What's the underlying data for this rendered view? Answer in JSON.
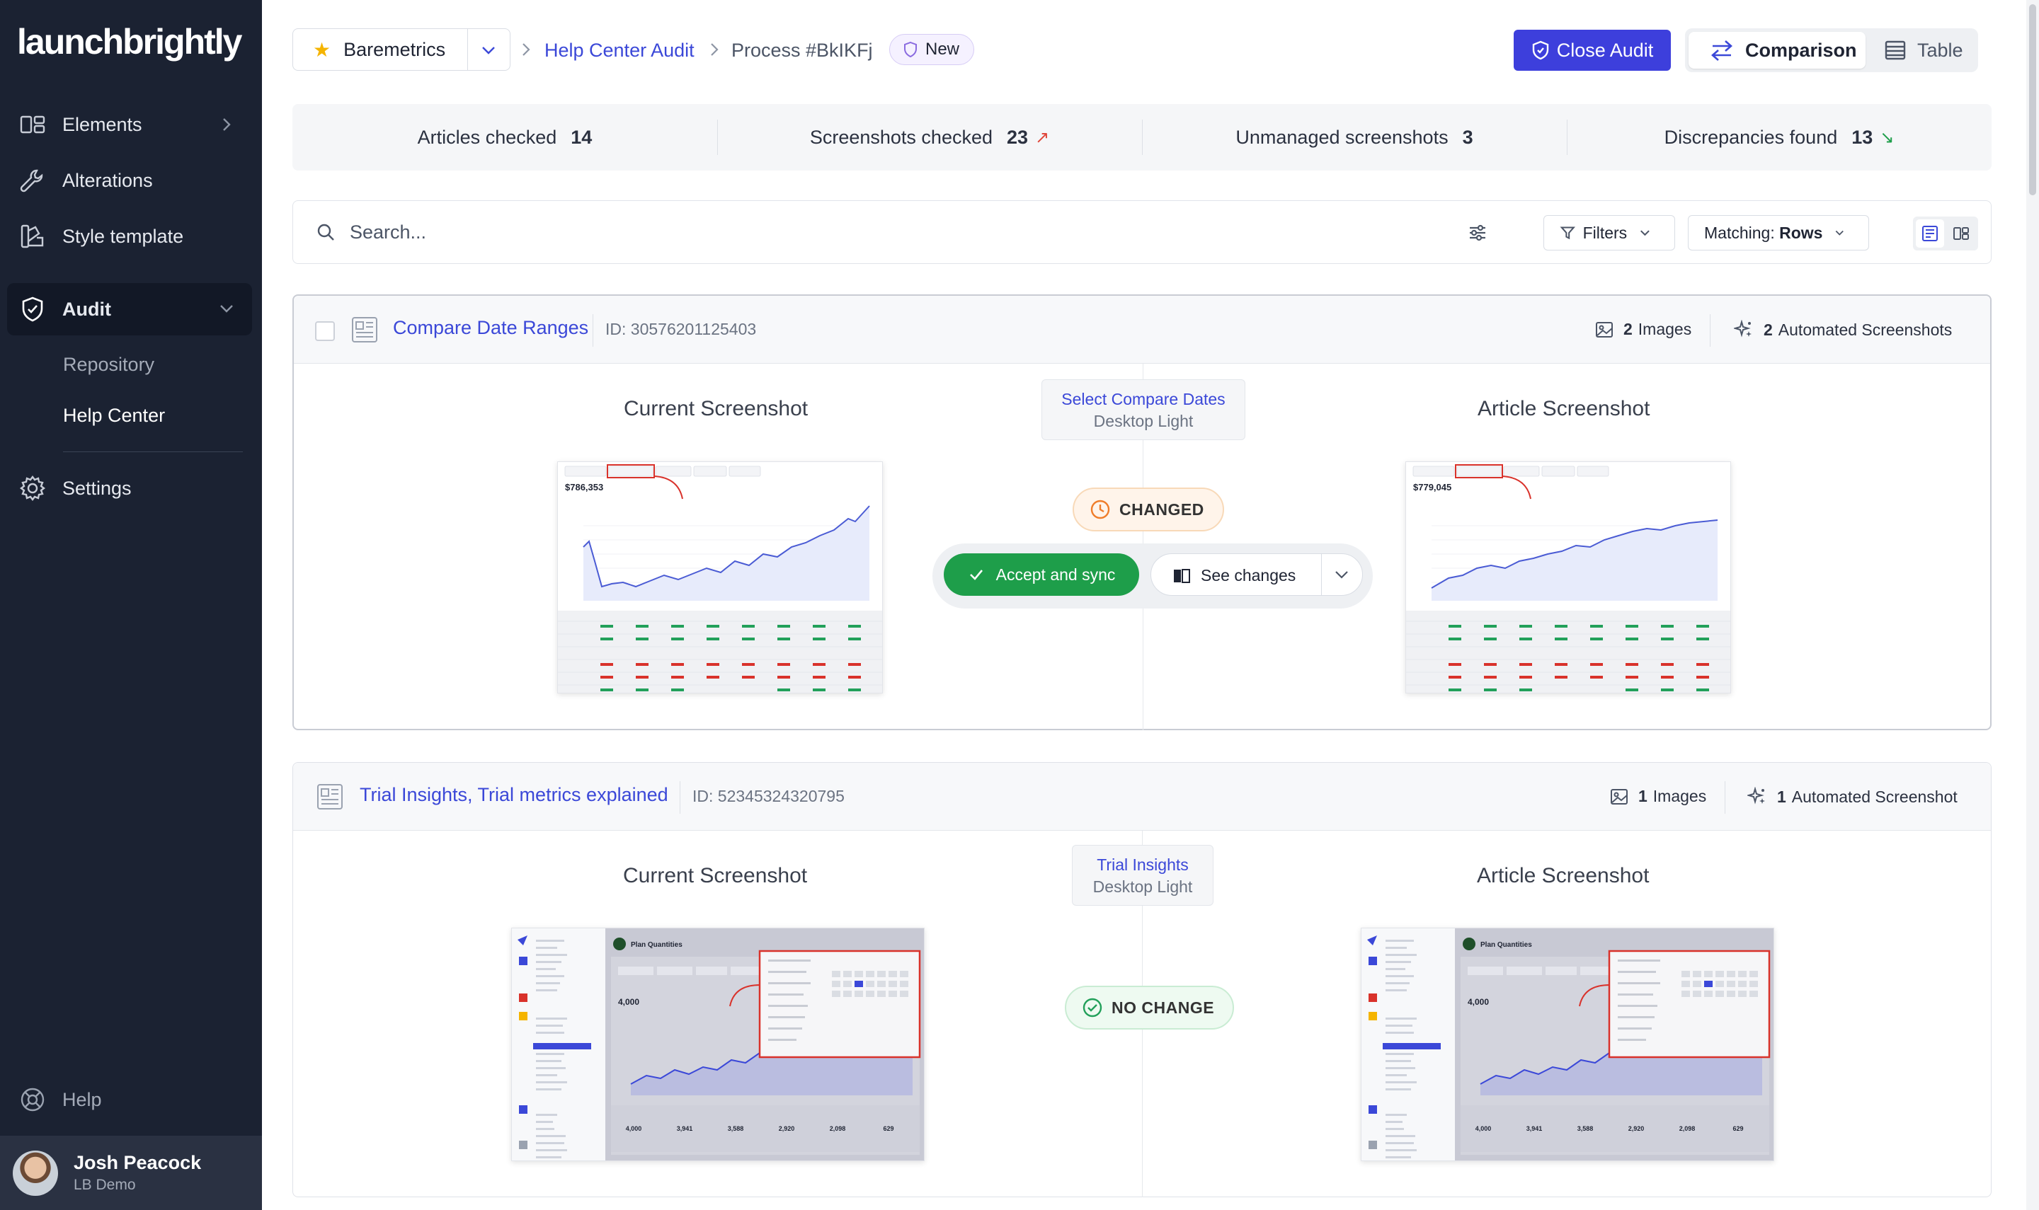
{
  "app": {
    "logo": "launchbrightly"
  },
  "sidebar": {
    "items": [
      {
        "label": "Elements",
        "icon": "elements-icon"
      },
      {
        "label": "Alterations",
        "icon": "wrench-icon"
      },
      {
        "label": "Style template",
        "icon": "style-template-icon"
      },
      {
        "label": "Audit",
        "icon": "shield-check-icon"
      },
      {
        "label": "Settings",
        "icon": "gear-icon"
      }
    ],
    "audit_sub": [
      "Repository",
      "Help Center"
    ],
    "help": "Help",
    "user": {
      "name": "Josh Peacock",
      "org": "LB Demo"
    }
  },
  "header": {
    "account": "Baremetrics",
    "breadcrumb": [
      "Help Center Audit",
      "Process #BkIKFj"
    ],
    "status_badge": "New",
    "close_audit": "Close Audit",
    "views": [
      "Comparison",
      "Table"
    ]
  },
  "stats": [
    {
      "label": "Articles checked",
      "value": "14",
      "trend": ""
    },
    {
      "label": "Screenshots checked",
      "value": "23",
      "trend": "↗"
    },
    {
      "label": "Unmanaged screenshots",
      "value": "3",
      "trend": ""
    },
    {
      "label": "Discrepancies found",
      "value": "13",
      "trend": "↘"
    }
  ],
  "colors": {
    "trend_up": "#e0473b",
    "trend_down": "#1e9e4a",
    "accent": "#3d3fdc",
    "link": "#3b48d8"
  },
  "search": {
    "placeholder": "Search...",
    "filters": "Filters",
    "matching_prefix": "Matching: ",
    "matching_value": "Rows"
  },
  "cards": [
    {
      "title": "Compare Date Ranges",
      "id": "ID: 30576201125403",
      "images_count": "2",
      "images_label": "Images",
      "auto_count": "2",
      "auto_label": "Automated Screenshots",
      "current_label": "Current Screenshot",
      "article_label": "Article Screenshot",
      "flow_name": "Select Compare Dates",
      "flow_env": "Desktop Light",
      "status": "CHANGED",
      "accept": "Accept and sync",
      "see_changes": "See changes",
      "current_shot": {
        "metric": "$786,353"
      },
      "article_shot": {
        "metric": "$779,045"
      }
    },
    {
      "title": "Trial Insights, Trial metrics explained",
      "id": "ID: 52345324320795",
      "images_count": "1",
      "images_label": "Images",
      "auto_count": "1",
      "auto_label": "Automated Screenshot",
      "current_label": "Current Screenshot",
      "article_label": "Article Screenshot",
      "flow_name": "Trial Insights",
      "flow_env": "Desktop Light",
      "status": "NO CHANGE",
      "current_shot": {
        "title": "Plan Quantities",
        "metric": "4,000",
        "row": [
          "4,000",
          "3,941",
          "3,588",
          "2,920",
          "2,098",
          "629"
        ]
      },
      "article_shot": {
        "title": "Plan Quantities",
        "metric": "4,000",
        "row": [
          "4,000",
          "3,941",
          "3,588",
          "2,920",
          "2,098",
          "629"
        ]
      }
    }
  ]
}
